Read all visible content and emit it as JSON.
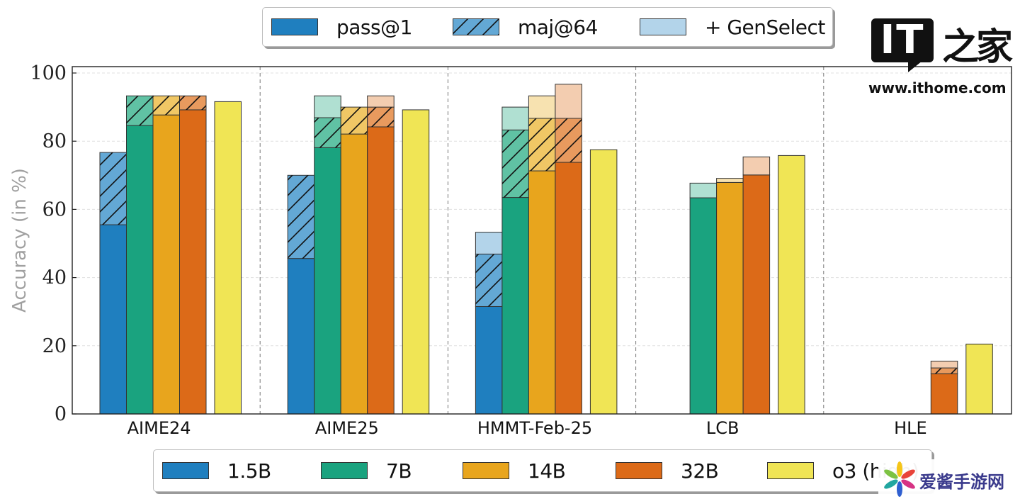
{
  "chart_data": {
    "type": "bar",
    "subtype": "grouped-stacked",
    "title": "",
    "xlabel": "",
    "ylabel": "Accuracy (in %)",
    "ylim": [
      0,
      100
    ],
    "yticks": [
      0,
      20,
      40,
      60,
      80,
      100
    ],
    "grid": "horizontal dashed",
    "categories": [
      "AIME24",
      "AIME25",
      "HMMT-Feb-25",
      "LCB",
      "HLE"
    ],
    "models": [
      {
        "name": "1.5B",
        "color": "#1f7fbf",
        "maj_color": "#63a8d5",
        "gen_color": "#b3d4ea"
      },
      {
        "name": "7B",
        "color": "#1aa37f",
        "maj_color": "#60c2a4",
        "gen_color": "#b0e0d2"
      },
      {
        "name": "14B",
        "color": "#e8a51d",
        "maj_color": "#f0c765",
        "gen_color": "#f7e2b0"
      },
      {
        "name": "32B",
        "color": "#dc6a18",
        "maj_color": "#e89a5e",
        "gen_color": "#f3cdb0"
      },
      {
        "name": "o3 (high)",
        "color": "#f0e555",
        "maj_color": "#f0e555",
        "gen_color": "#f0e555"
      }
    ],
    "metric_legend": [
      {
        "name": "pass@1",
        "style": "solid"
      },
      {
        "name": "maj@64",
        "style": "hatched"
      },
      {
        "name": "+ GenSelect",
        "style": "light"
      }
    ],
    "series": [
      {
        "category": "AIME24",
        "bars": [
          {
            "model": "1.5B",
            "pass1": 55.5,
            "maj64": 76.7,
            "genselect": null
          },
          {
            "model": "7B",
            "pass1": 84.6,
            "maj64": 93.3,
            "genselect": null
          },
          {
            "model": "14B",
            "pass1": 87.7,
            "maj64": 93.3,
            "genselect": null
          },
          {
            "model": "32B",
            "pass1": 89.2,
            "maj64": 93.3,
            "genselect": null
          },
          {
            "model": "o3 (high)",
            "pass1": 91.6,
            "maj64": null,
            "genselect": null
          }
        ]
      },
      {
        "category": "AIME25",
        "bars": [
          {
            "model": "1.5B",
            "pass1": 45.6,
            "maj64": 70.0,
            "genselect": null
          },
          {
            "model": "7B",
            "pass1": 78.1,
            "maj64": 86.9,
            "genselect": 93.3
          },
          {
            "model": "14B",
            "pass1": 82.1,
            "maj64": 90.0,
            "genselect": null
          },
          {
            "model": "32B",
            "pass1": 84.2,
            "maj64": 90.0,
            "genselect": 93.3
          },
          {
            "model": "o3 (high)",
            "pass1": 89.2,
            "maj64": null,
            "genselect": null
          }
        ]
      },
      {
        "category": "HMMT-Feb-25",
        "bars": [
          {
            "model": "1.5B",
            "pass1": 31.5,
            "maj64": 46.9,
            "genselect": 53.3
          },
          {
            "model": "7B",
            "pass1": 63.5,
            "maj64": 83.3,
            "genselect": 90.0
          },
          {
            "model": "14B",
            "pass1": 71.3,
            "maj64": 86.7,
            "genselect": 93.3
          },
          {
            "model": "32B",
            "pass1": 73.8,
            "maj64": 86.7,
            "genselect": 96.7
          },
          {
            "model": "o3 (high)",
            "pass1": 77.5,
            "maj64": null,
            "genselect": null
          }
        ]
      },
      {
        "category": "LCB",
        "bars": [
          {
            "model": "1.5B",
            "pass1": null,
            "maj64": null,
            "genselect": null
          },
          {
            "model": "7B",
            "pass1": 63.4,
            "maj64": null,
            "genselect": 67.7
          },
          {
            "model": "14B",
            "pass1": 67.9,
            "maj64": null,
            "genselect": 69.1
          },
          {
            "model": "32B",
            "pass1": 70.1,
            "maj64": null,
            "genselect": 75.4
          },
          {
            "model": "o3 (high)",
            "pass1": 75.8,
            "maj64": null,
            "genselect": null
          }
        ]
      },
      {
        "category": "HLE",
        "bars": [
          {
            "model": "1.5B",
            "pass1": null,
            "maj64": null,
            "genselect": null
          },
          {
            "model": "7B",
            "pass1": null,
            "maj64": null,
            "genselect": null
          },
          {
            "model": "14B",
            "pass1": null,
            "maj64": null,
            "genselect": null
          },
          {
            "model": "32B",
            "pass1": 11.8,
            "maj64": 13.5,
            "genselect": 15.5
          },
          {
            "model": "o3 (high)",
            "pass1": 20.5,
            "maj64": null,
            "genselect": null
          }
        ]
      }
    ],
    "legend_top": {
      "placement": "top-center",
      "items": [
        "pass@1",
        "maj@64",
        "+ GenSelect"
      ]
    },
    "legend_bottom": {
      "placement": "bottom-center",
      "items": [
        "1.5B",
        "7B",
        "14B",
        "32B",
        "o3 (high)"
      ]
    }
  },
  "legend_top_labels": [
    "pass@1",
    "maj@64",
    "+ GenSelect"
  ],
  "legend_bottom_labels": [
    "1.5B",
    "7B",
    "14B",
    "32B",
    "o3 (high)"
  ],
  "watermarks": {
    "ithome_logo": "IT",
    "ithome_cn": "之家",
    "ithome_url": "www.ithome.com",
    "game_site": "爱酱手游网"
  }
}
